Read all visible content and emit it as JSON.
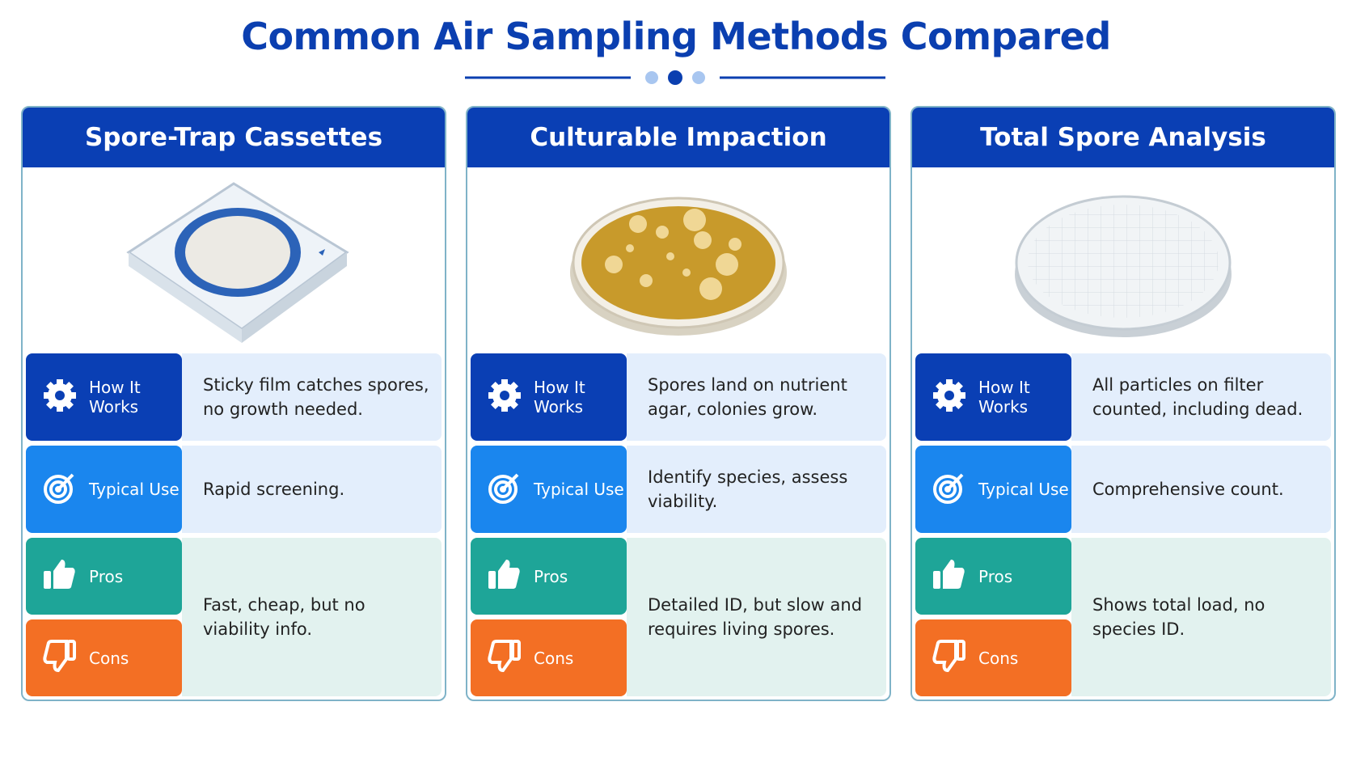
{
  "title": "Common Air Sampling Methods Compared",
  "labels": {
    "how": "How It Works",
    "typical": "Typical Use",
    "pros": "Pros",
    "cons": "Cons"
  },
  "columns": [
    {
      "title": "Spore-Trap Cassettes",
      "how": "Sticky film catches spores, no growth needed.",
      "typical": "Rapid screening.",
      "pros_cons": "Fast, cheap, but no viability info."
    },
    {
      "title": "Culturable Impaction",
      "how": "Spores land on nutrient agar, colonies grow.",
      "typical": "Identify species, assess viability.",
      "pros_cons": "Detailed ID, but slow and requires living spores."
    },
    {
      "title": "Total Spore Analysis",
      "how": "All particles on filter counted, including dead.",
      "typical": "Comprehensive count.",
      "pros_cons": "Shows total load, no species ID."
    }
  ]
}
